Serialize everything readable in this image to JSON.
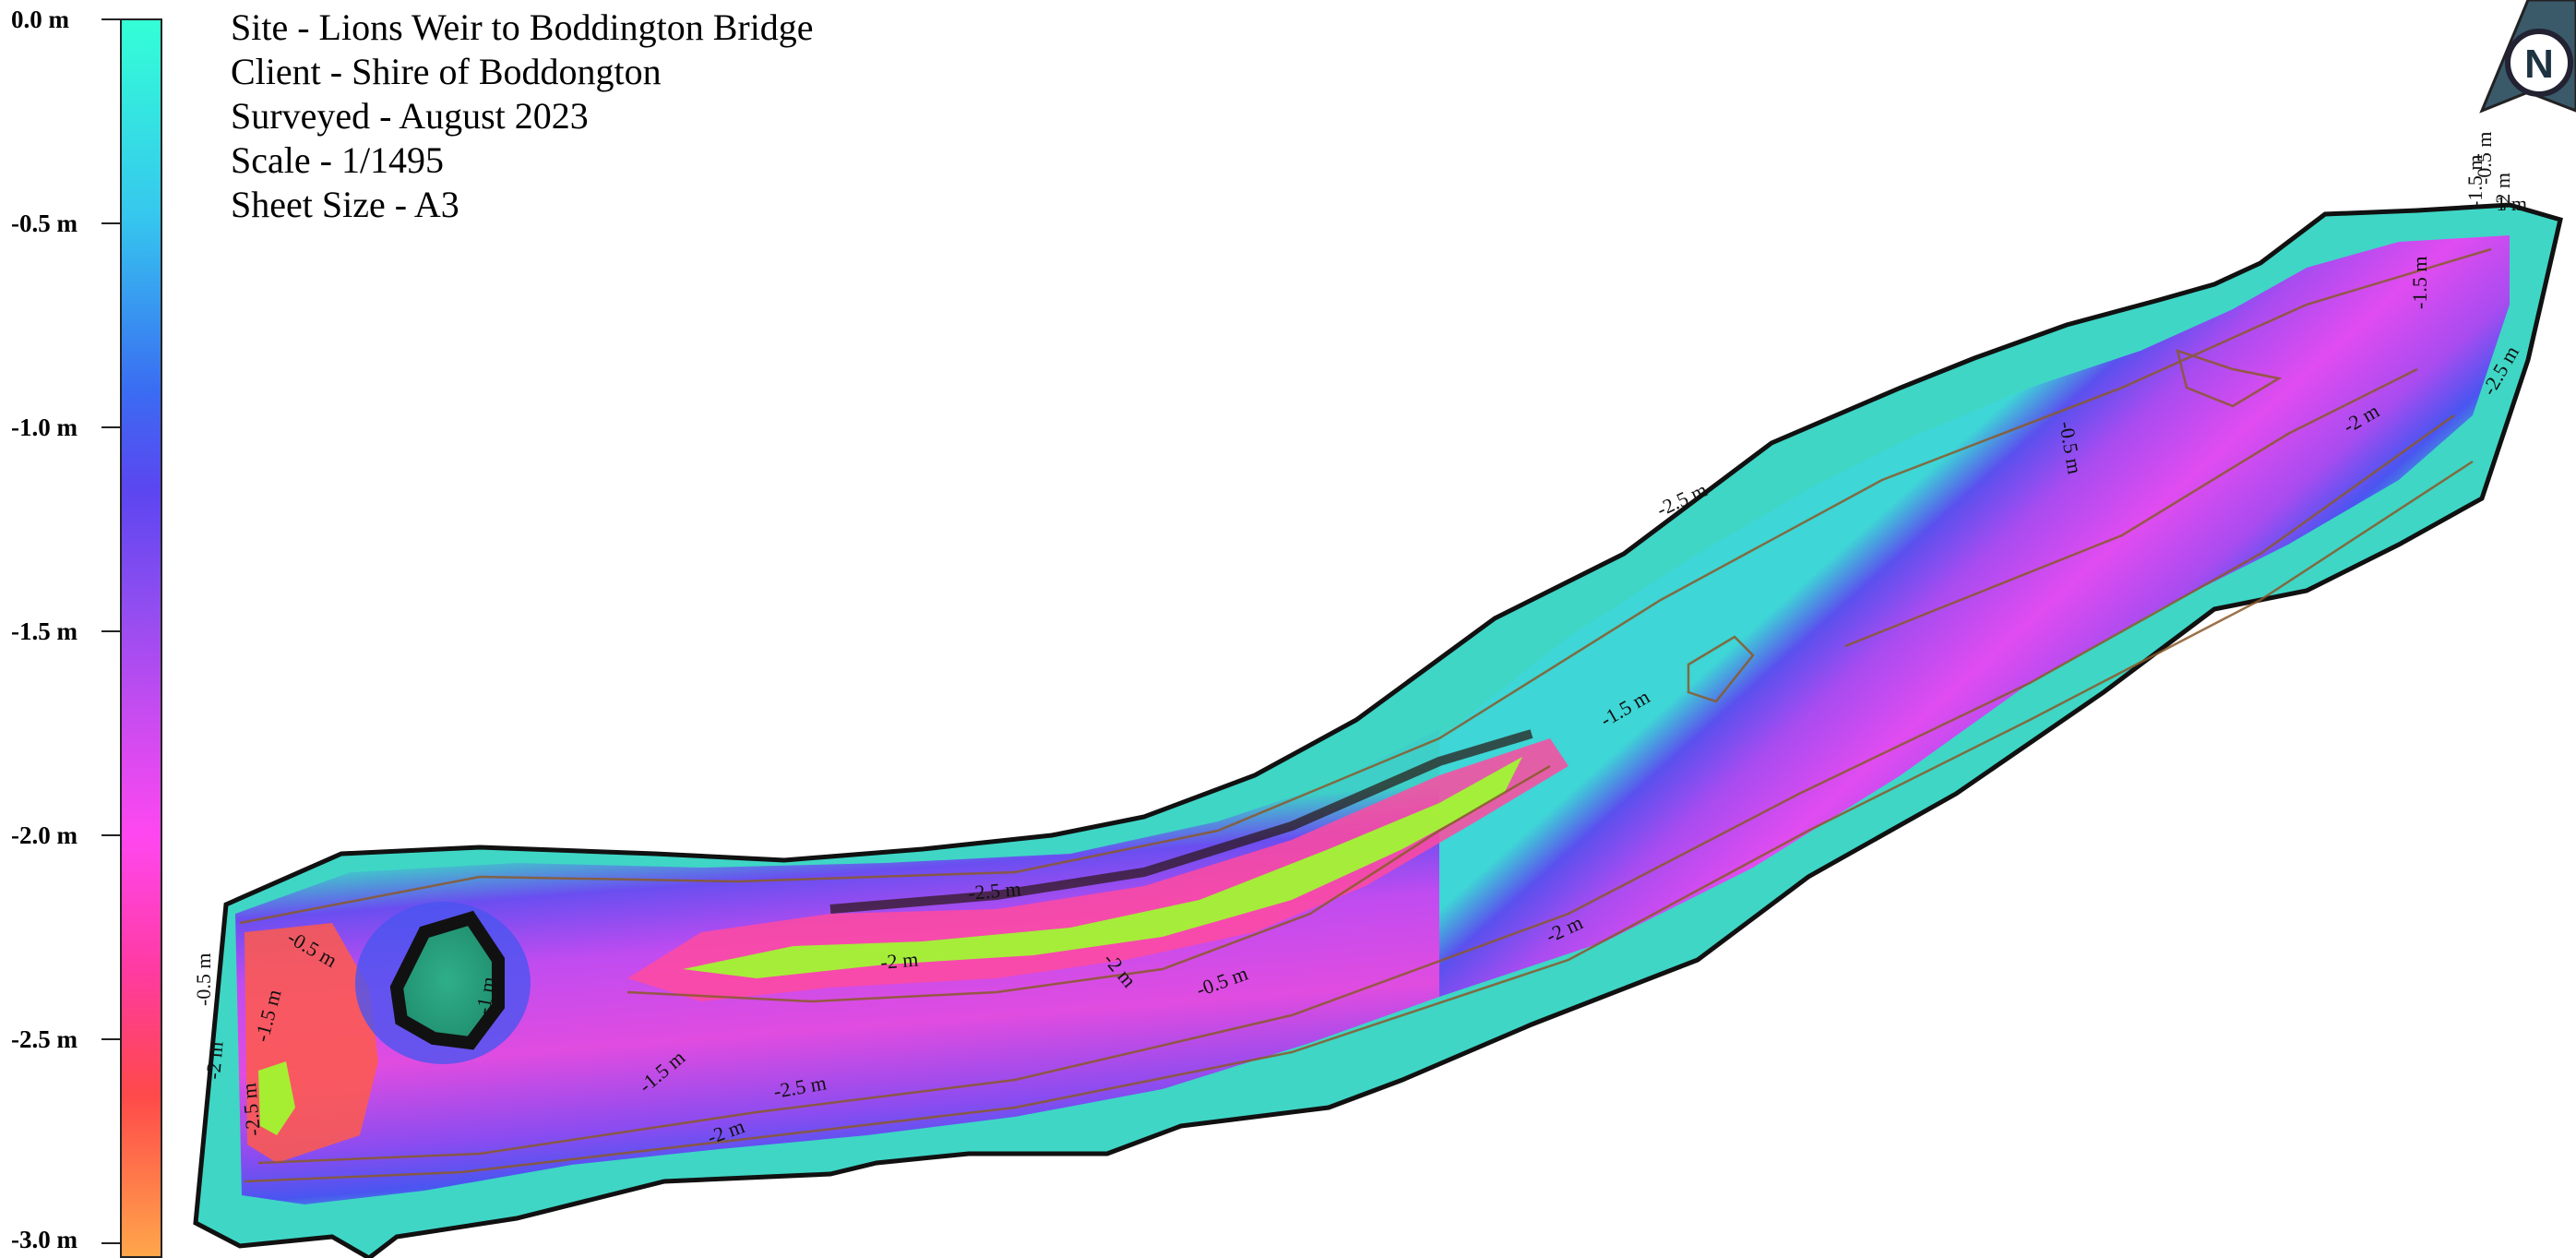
{
  "legend": {
    "ticks": [
      "0.0 m",
      "-0.5 m",
      "-1.0 m",
      "-1.5 m",
      "-2.0 m",
      "-2.5 m",
      "-3.0 m"
    ]
  },
  "info": {
    "site": "Site - Lions Weir to Boddington Bridge",
    "client": "Client - Shire of Boddongton",
    "surveyed": "Surveyed - August 2023",
    "scale": "Scale - 1/1495",
    "sheet": "Sheet Size - A3"
  },
  "north_arrow": {
    "letter": "N"
  },
  "contour_labels": [
    "-0.5 m",
    "-1.5 m",
    "-2 m",
    "-2.5 m",
    "-0.5 m",
    "-1.5 m",
    "-2 m",
    "-1 m",
    "-2.5 m",
    "-2 m",
    "-2.5 m",
    "-2 m",
    "-0.5 m",
    "-1.5 m",
    "-2 m",
    "-2.5 m",
    "-0.5 m",
    "-2 m",
    "-1.5 m",
    "-2.5 m",
    "-1 m",
    "-0.5 m",
    "-1.5 m",
    "-2 m"
  ],
  "colors": {
    "shallow": "#33ffd6",
    "mid_blue": "#4a55f0",
    "violet": "#a64cf0",
    "magenta": "#ff47f0",
    "red": "#ff4a4a",
    "yellow_green": "#9cff2e",
    "island": "#2fae8a",
    "contour": "#8a5a2a"
  }
}
